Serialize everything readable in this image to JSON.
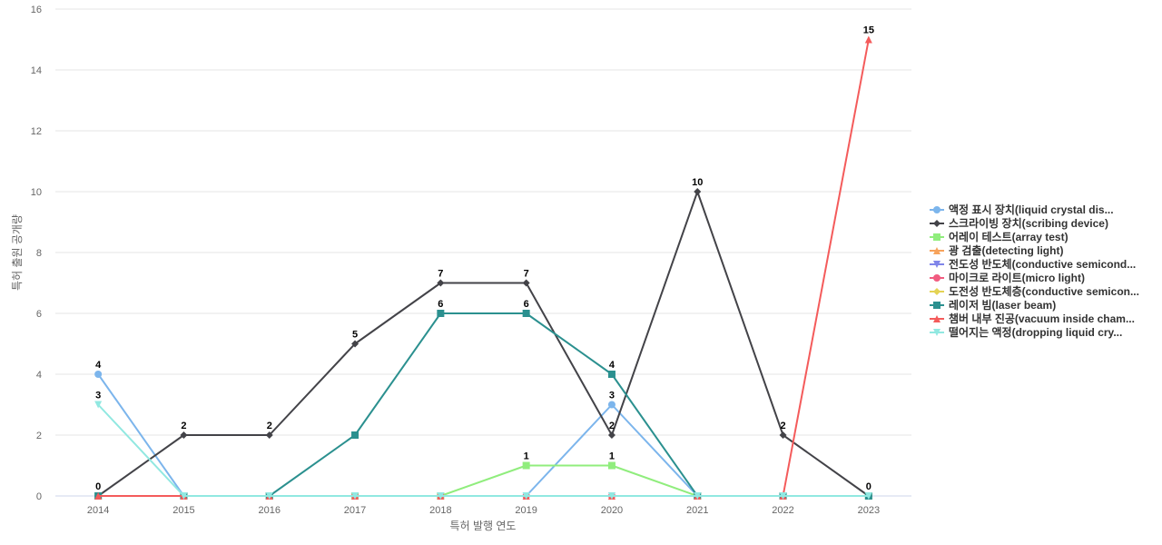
{
  "chart_data": {
    "type": "line",
    "title": "",
    "xlabel": "특허 발행 연도",
    "ylabel": "특허 출원 공개량",
    "x": [
      "2014",
      "2015",
      "2016",
      "2017",
      "2018",
      "2019",
      "2020",
      "2021",
      "2022",
      "2023"
    ],
    "ylim": [
      0,
      16
    ],
    "yticks": [
      0,
      2,
      4,
      6,
      8,
      10,
      12,
      14,
      16
    ],
    "grid": true,
    "legend_position": "right",
    "series": [
      {
        "name": "액정 표시 장치(liquid crystal dis...",
        "color": "#7cb5ec",
        "marker": "circle",
        "values": [
          4,
          0,
          0,
          0,
          0,
          0,
          3,
          0,
          0,
          0
        ],
        "labels": [
          true,
          false,
          false,
          false,
          false,
          false,
          true,
          false,
          false,
          false
        ]
      },
      {
        "name": "스크라이빙 장치(scribing device)",
        "color": "#434348",
        "marker": "diamond",
        "values": [
          0,
          2,
          2,
          5,
          7,
          7,
          2,
          10,
          2,
          0
        ],
        "labels": [
          true,
          true,
          true,
          true,
          true,
          true,
          true,
          true,
          true,
          true
        ]
      },
      {
        "name": "어레이 테스트(array test)",
        "color": "#90ed7d",
        "marker": "square",
        "values": [
          0,
          0,
          0,
          0,
          0,
          1,
          1,
          0,
          0,
          0
        ],
        "labels": [
          false,
          false,
          false,
          false,
          false,
          true,
          true,
          false,
          false,
          false
        ]
      },
      {
        "name": "광 검출(detecting light)",
        "color": "#f7a35c",
        "marker": "triangle",
        "values": [
          0,
          0,
          0,
          0,
          0,
          0,
          0,
          0,
          0,
          0
        ],
        "labels": [
          false,
          false,
          false,
          false,
          false,
          false,
          false,
          false,
          false,
          false
        ]
      },
      {
        "name": "전도성 반도체(conductive semicond...",
        "color": "#8085e9",
        "marker": "triangle-down",
        "values": [
          0,
          0,
          0,
          0,
          0,
          0,
          0,
          0,
          0,
          0
        ],
        "labels": [
          false,
          false,
          false,
          false,
          false,
          false,
          false,
          false,
          false,
          false
        ]
      },
      {
        "name": "마이크로 라이트(micro light)",
        "color": "#f15c80",
        "marker": "circle",
        "values": [
          0,
          0,
          0,
          0,
          0,
          0,
          0,
          0,
          0,
          0
        ],
        "labels": [
          false,
          false,
          false,
          false,
          false,
          false,
          false,
          false,
          false,
          false
        ]
      },
      {
        "name": "도전성 반도체층(conductive semicon...",
        "color": "#e4d354",
        "marker": "diamond",
        "values": [
          0,
          0,
          0,
          0,
          0,
          0,
          0,
          0,
          0,
          0
        ],
        "labels": [
          false,
          false,
          false,
          false,
          false,
          false,
          false,
          false,
          false,
          false
        ]
      },
      {
        "name": "레이저 빔(laser beam)",
        "color": "#2b908f",
        "marker": "square",
        "values": [
          0,
          0,
          0,
          2,
          6,
          6,
          4,
          0,
          0,
          0
        ],
        "labels": [
          false,
          false,
          false,
          false,
          true,
          true,
          true,
          false,
          false,
          false
        ]
      },
      {
        "name": "챔버 내부 진공(vacuum inside cham...",
        "color": "#f45b5b",
        "marker": "triangle",
        "values": [
          0,
          0,
          0,
          0,
          0,
          0,
          0,
          0,
          0,
          15
        ],
        "labels": [
          false,
          false,
          false,
          false,
          false,
          false,
          false,
          false,
          false,
          true
        ]
      },
      {
        "name": "떨어지는 액정(dropping liquid cry...",
        "color": "#91e8e1",
        "marker": "triangle-down",
        "values": [
          3,
          0,
          0,
          0,
          0,
          0,
          0,
          0,
          0,
          0
        ],
        "labels": [
          true,
          false,
          false,
          false,
          false,
          false,
          false,
          false,
          false,
          false
        ]
      }
    ]
  }
}
